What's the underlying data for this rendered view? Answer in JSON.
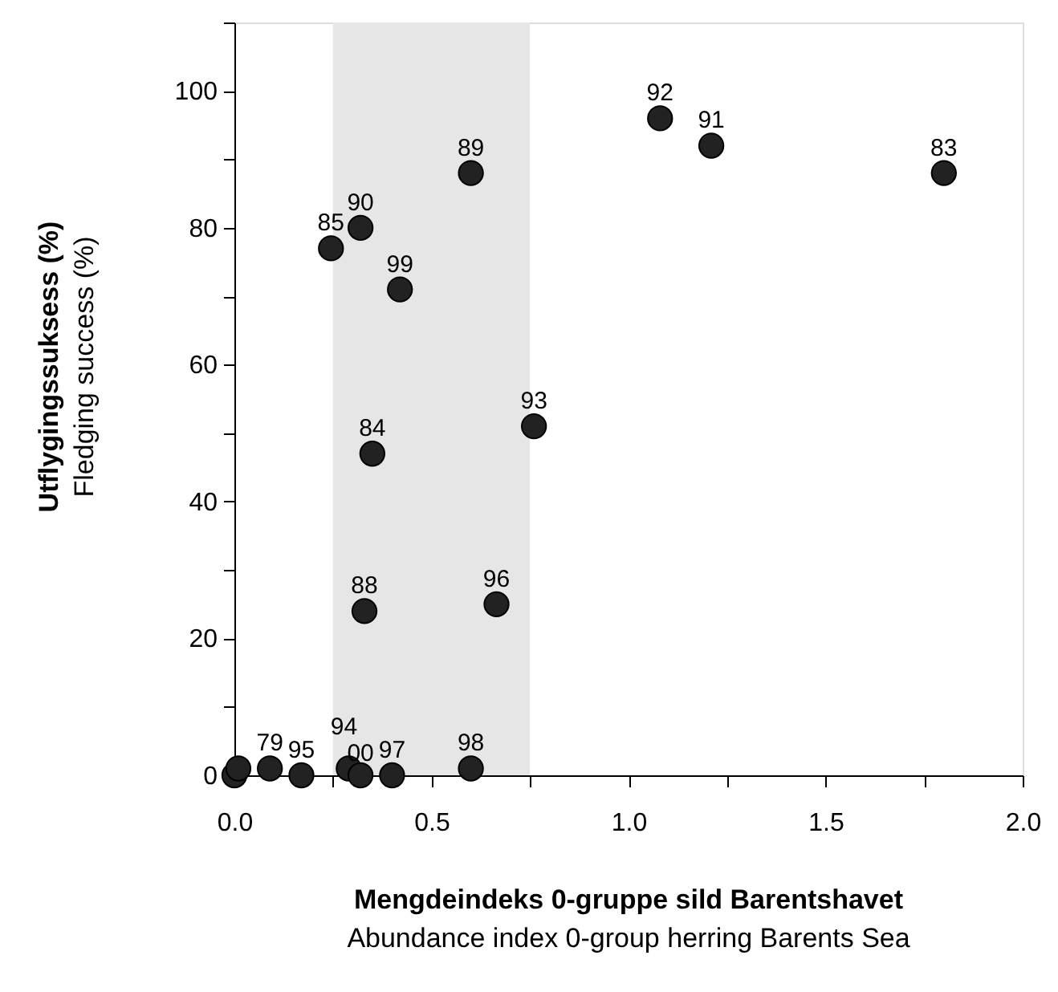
{
  "chart_data": {
    "type": "scatter",
    "xlabel": "Mengdeindeks 0-gruppe sild Barentshavet\nAbundance index 0-group herring Barents Sea",
    "ylabel": "Utflygingssuksess (%)\nFledging success (%)",
    "series": [
      {
        "color": "#222222",
        "x": [
          0.0,
          0.01,
          0.09,
          0.17,
          0.29,
          0.32,
          0.4,
          0.6,
          0.245,
          0.32,
          0.6,
          0.42,
          0.76,
          1.08,
          1.21,
          1.8,
          0.35,
          0.33,
          0.665
        ],
        "values": [
          0,
          1,
          1,
          0,
          1,
          0,
          0,
          1,
          77,
          80,
          88,
          71,
          51,
          96,
          92,
          88,
          47,
          24,
          25
        ]
      }
    ],
    "annotations": [
      {
        "text": "79",
        "x": 0.09,
        "y": 1
      },
      {
        "text": "95",
        "x": 0.17,
        "y": 0
      },
      {
        "text": "94",
        "x": 0.29,
        "y": 1
      },
      {
        "text": "00",
        "x": 0.32,
        "y": 0
      },
      {
        "text": "97",
        "x": 0.4,
        "y": 0
      },
      {
        "text": "98",
        "x": 0.6,
        "y": 1
      },
      {
        "text": "85",
        "x": 0.245,
        "y": 77
      },
      {
        "text": "90",
        "x": 0.32,
        "y": 80
      },
      {
        "text": "89",
        "x": 0.6,
        "y": 88
      },
      {
        "text": "99",
        "x": 0.42,
        "y": 71
      },
      {
        "text": "93",
        "x": 0.76,
        "y": 51
      },
      {
        "text": "92",
        "x": 1.08,
        "y": 96
      },
      {
        "text": "91",
        "x": 1.21,
        "y": 92
      },
      {
        "text": "83",
        "x": 1.8,
        "y": 88
      },
      {
        "text": "84",
        "x": 0.35,
        "y": 47
      },
      {
        "text": "88",
        "x": 0.33,
        "y": 24
      },
      {
        "text": "96",
        "x": 0.665,
        "y": 25
      }
    ],
    "bands": [
      {
        "axis": "x",
        "from": 0.25,
        "to": 0.75,
        "color": "#e6e6e6"
      }
    ],
    "xlim": [
      0,
      2.0
    ],
    "xticks": [
      {
        "value": 0,
        "label": "0.0"
      },
      {
        "value": 0.25,
        "label": null
      },
      0.5,
      {
        "value": 0.75,
        "label": null
      },
      {
        "value": 1,
        "label": "1.0"
      },
      {
        "value": 1.25,
        "label": null
      },
      1.5,
      {
        "value": 1.75,
        "label": null
      },
      {
        "value": 2,
        "label": "2.0"
      }
    ],
    "ylim": [
      0,
      110
    ],
    "yticks": [
      0,
      {
        "value": 10,
        "label": null
      },
      20,
      {
        "value": 30,
        "label": null
      },
      40,
      {
        "value": 50,
        "label": null
      },
      60,
      {
        "value": 70,
        "label": null
      },
      80,
      {
        "value": 90,
        "label": null
      },
      100,
      {
        "value": 110,
        "label": null
      }
    ],
    "marker": "circle",
    "grid": false
  }
}
